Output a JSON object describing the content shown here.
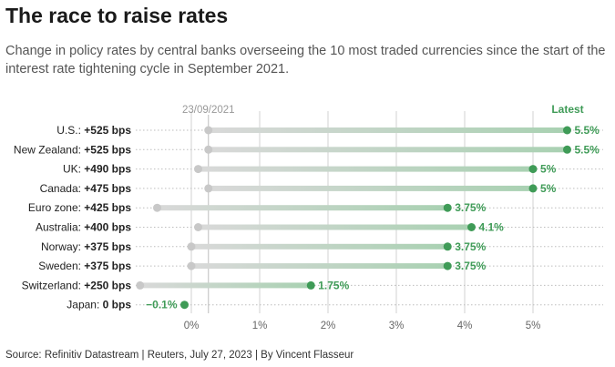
{
  "header": {
    "title": "The race to raise rates",
    "subtitle": "Change in policy rates by central banks overseeing the 10 most traded currencies since the start of the interest rate tightening cycle in September 2021."
  },
  "footer": {
    "source": "Source: Refinitiv Datastream | Reuters, July 27, 2023 | By Vincent Flasseur"
  },
  "chart_data": {
    "type": "dumbbell",
    "start_label": "23/09/2021",
    "end_label": "Latest",
    "x_ticks": [
      "0%",
      "1%",
      "2%",
      "3%",
      "4%",
      "5%"
    ],
    "xlim": [
      -0.75,
      5.75
    ],
    "colors": {
      "start": "#c8c8c8",
      "end": "#3f9b57",
      "bar_start": "#d9d9d9",
      "bar_end": "#a9d1b2"
    },
    "rows": [
      {
        "name": "U.S.:",
        "change": "+525 bps",
        "start": 0.25,
        "end": 5.5,
        "label": "5.5%"
      },
      {
        "name": "New Zealand:",
        "change": "+525 bps",
        "start": 0.25,
        "end": 5.5,
        "label": "5.5%"
      },
      {
        "name": "UK:",
        "change": "+490 bps",
        "start": 0.1,
        "end": 5.0,
        "label": "5%"
      },
      {
        "name": "Canada:",
        "change": "+475 bps",
        "start": 0.25,
        "end": 5.0,
        "label": "5%"
      },
      {
        "name": "Euro zone:",
        "change": "+425 bps",
        "start": -0.5,
        "end": 3.75,
        "label": "3.75%"
      },
      {
        "name": "Australia:",
        "change": "+400 bps",
        "start": 0.1,
        "end": 4.1,
        "label": "4.1%"
      },
      {
        "name": "Norway:",
        "change": "+375 bps",
        "start": 0.0,
        "end": 3.75,
        "label": "3.75%"
      },
      {
        "name": "Sweden:",
        "change": "+375 bps",
        "start": 0.0,
        "end": 3.75,
        "label": "3.75%"
      },
      {
        "name": "Switzerland:",
        "change": "+250 bps",
        "start": -0.75,
        "end": 1.75,
        "label": "1.75%"
      },
      {
        "name": "Japan:",
        "change": "0 bps",
        "start": -0.1,
        "end": -0.1,
        "label": "−0.1%"
      }
    ]
  }
}
